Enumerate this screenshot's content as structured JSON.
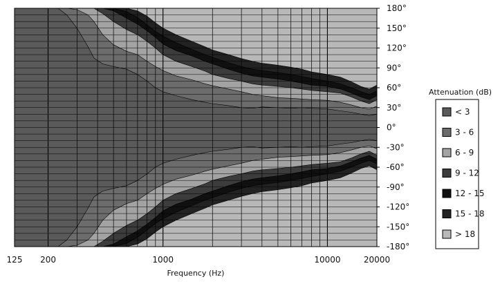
{
  "chart_data": {
    "type": "heatmap",
    "title": "",
    "xlabel": "Frequency (Hz)",
    "ylabel": "",
    "x_scale": "log",
    "xlim": [
      125,
      20000
    ],
    "ylim": [
      -180,
      180
    ],
    "grid": true,
    "x_ticks": [
      {
        "value": 125,
        "label": "125"
      },
      {
        "value": 200,
        "label": "200"
      },
      {
        "value": 1000,
        "label": "1000"
      },
      {
        "value": 10000,
        "label": "10000"
      },
      {
        "value": 20000,
        "label": "20000"
      }
    ],
    "y_ticks": [
      {
        "value": 180,
        "label": "180°"
      },
      {
        "value": 150,
        "label": "150°"
      },
      {
        "value": 120,
        "label": "120°"
      },
      {
        "value": 90,
        "label": "90°"
      },
      {
        "value": 60,
        "label": "60°"
      },
      {
        "value": 30,
        "label": "30°"
      },
      {
        "value": 0,
        "label": "0°"
      },
      {
        "value": -30,
        "label": "-30°"
      },
      {
        "value": -60,
        "label": "-60°"
      },
      {
        "value": -90,
        "label": "-90°"
      },
      {
        "value": -120,
        "label": "-120°"
      },
      {
        "value": -150,
        "label": "-150°"
      },
      {
        "value": -180,
        "label": "-180°"
      }
    ],
    "legend": {
      "title": "Attenuation (dB)",
      "position": "right",
      "items": [
        {
          "label": "< 3",
          "color": "#5a5a5a"
        },
        {
          "label": "3 - 6",
          "color": "#6c6c6c"
        },
        {
          "label": "6 - 9",
          "color": "#a3a3a3"
        },
        {
          "label": "9 - 12",
          "color": "#3c3c3c"
        },
        {
          "label": "12 - 15",
          "color": "#101010"
        },
        {
          "label": "15 - 18",
          "color": "#222222"
        },
        {
          "label": "> 18",
          "color": "#b8b8b8"
        }
      ]
    },
    "contours": {
      "level_3": [
        {
          "x": 125,
          "y": 180
        },
        {
          "x": 150,
          "y": 180
        },
        {
          "x": 180,
          "y": 180
        },
        {
          "x": 200,
          "y": 180
        },
        {
          "x": 230,
          "y": 180
        },
        {
          "x": 260,
          "y": 170
        },
        {
          "x": 300,
          "y": 150
        },
        {
          "x": 350,
          "y": 122
        },
        {
          "x": 380,
          "y": 105
        },
        {
          "x": 430,
          "y": 96
        },
        {
          "x": 500,
          "y": 92
        },
        {
          "x": 600,
          "y": 88
        },
        {
          "x": 700,
          "y": 80
        },
        {
          "x": 800,
          "y": 70
        },
        {
          "x": 900,
          "y": 60
        },
        {
          "x": 1000,
          "y": 54
        },
        {
          "x": 1200,
          "y": 48
        },
        {
          "x": 1500,
          "y": 42
        },
        {
          "x": 1800,
          "y": 38
        },
        {
          "x": 2000,
          "y": 36
        },
        {
          "x": 2500,
          "y": 33
        },
        {
          "x": 3000,
          "y": 30
        },
        {
          "x": 3500,
          "y": 29
        },
        {
          "x": 4000,
          "y": 31
        },
        {
          "x": 5000,
          "y": 30
        },
        {
          "x": 6000,
          "y": 29
        },
        {
          "x": 7000,
          "y": 30
        },
        {
          "x": 8000,
          "y": 29
        },
        {
          "x": 10000,
          "y": 28
        },
        {
          "x": 12000,
          "y": 25
        },
        {
          "x": 14000,
          "y": 23
        },
        {
          "x": 16000,
          "y": 20
        },
        {
          "x": 18000,
          "y": 18
        },
        {
          "x": 20000,
          "y": 20
        }
      ],
      "level_6": [
        {
          "x": 125,
          "y": 180
        },
        {
          "x": 150,
          "y": 180
        },
        {
          "x": 180,
          "y": 180
        },
        {
          "x": 200,
          "y": 180
        },
        {
          "x": 230,
          "y": 180
        },
        {
          "x": 260,
          "y": 180
        },
        {
          "x": 300,
          "y": 178
        },
        {
          "x": 350,
          "y": 170
        },
        {
          "x": 380,
          "y": 160
        },
        {
          "x": 430,
          "y": 140
        },
        {
          "x": 500,
          "y": 125
        },
        {
          "x": 600,
          "y": 115
        },
        {
          "x": 700,
          "y": 110
        },
        {
          "x": 800,
          "y": 100
        },
        {
          "x": 900,
          "y": 92
        },
        {
          "x": 1000,
          "y": 86
        },
        {
          "x": 1200,
          "y": 78
        },
        {
          "x": 1500,
          "y": 72
        },
        {
          "x": 1800,
          "y": 66
        },
        {
          "x": 2000,
          "y": 63
        },
        {
          "x": 2500,
          "y": 58
        },
        {
          "x": 3000,
          "y": 54
        },
        {
          "x": 3500,
          "y": 50
        },
        {
          "x": 4000,
          "y": 48
        },
        {
          "x": 5000,
          "y": 45
        },
        {
          "x": 6000,
          "y": 44
        },
        {
          "x": 7000,
          "y": 43
        },
        {
          "x": 8000,
          "y": 42
        },
        {
          "x": 10000,
          "y": 41
        },
        {
          "x": 12000,
          "y": 38
        },
        {
          "x": 14000,
          "y": 34
        },
        {
          "x": 16000,
          "y": 30
        },
        {
          "x": 18000,
          "y": 28
        },
        {
          "x": 20000,
          "y": 32
        }
      ],
      "level_9": [
        {
          "x": 125,
          "y": 180
        },
        {
          "x": 150,
          "y": 180
        },
        {
          "x": 180,
          "y": 180
        },
        {
          "x": 200,
          "y": 180
        },
        {
          "x": 230,
          "y": 180
        },
        {
          "x": 260,
          "y": 180
        },
        {
          "x": 300,
          "y": 180
        },
        {
          "x": 350,
          "y": 180
        },
        {
          "x": 380,
          "y": 180
        },
        {
          "x": 430,
          "y": 172
        },
        {
          "x": 500,
          "y": 160
        },
        {
          "x": 600,
          "y": 148
        },
        {
          "x": 700,
          "y": 140
        },
        {
          "x": 800,
          "y": 130
        },
        {
          "x": 900,
          "y": 120
        },
        {
          "x": 1000,
          "y": 110
        },
        {
          "x": 1200,
          "y": 100
        },
        {
          "x": 1500,
          "y": 92
        },
        {
          "x": 1800,
          "y": 85
        },
        {
          "x": 2000,
          "y": 80
        },
        {
          "x": 2500,
          "y": 74
        },
        {
          "x": 3000,
          "y": 70
        },
        {
          "x": 3500,
          "y": 66
        },
        {
          "x": 4000,
          "y": 64
        },
        {
          "x": 5000,
          "y": 62
        },
        {
          "x": 6000,
          "y": 60
        },
        {
          "x": 7000,
          "y": 58
        },
        {
          "x": 8000,
          "y": 56
        },
        {
          "x": 10000,
          "y": 54
        },
        {
          "x": 12000,
          "y": 52
        },
        {
          "x": 14000,
          "y": 46
        },
        {
          "x": 16000,
          "y": 40
        },
        {
          "x": 18000,
          "y": 36
        },
        {
          "x": 20000,
          "y": 42
        }
      ],
      "level_12": [
        {
          "x": 125,
          "y": 180
        },
        {
          "x": 150,
          "y": 180
        },
        {
          "x": 180,
          "y": 180
        },
        {
          "x": 200,
          "y": 180
        },
        {
          "x": 230,
          "y": 180
        },
        {
          "x": 260,
          "y": 180
        },
        {
          "x": 300,
          "y": 180
        },
        {
          "x": 350,
          "y": 180
        },
        {
          "x": 380,
          "y": 180
        },
        {
          "x": 430,
          "y": 180
        },
        {
          "x": 500,
          "y": 176
        },
        {
          "x": 600,
          "y": 165
        },
        {
          "x": 700,
          "y": 156
        },
        {
          "x": 800,
          "y": 146
        },
        {
          "x": 900,
          "y": 136
        },
        {
          "x": 1000,
          "y": 126
        },
        {
          "x": 1200,
          "y": 116
        },
        {
          "x": 1500,
          "y": 108
        },
        {
          "x": 1800,
          "y": 100
        },
        {
          "x": 2000,
          "y": 96
        },
        {
          "x": 2500,
          "y": 88
        },
        {
          "x": 3000,
          "y": 82
        },
        {
          "x": 3500,
          "y": 78
        },
        {
          "x": 4000,
          "y": 76
        },
        {
          "x": 5000,
          "y": 73
        },
        {
          "x": 6000,
          "y": 70
        },
        {
          "x": 7000,
          "y": 67
        },
        {
          "x": 8000,
          "y": 64
        },
        {
          "x": 10000,
          "y": 62
        },
        {
          "x": 12000,
          "y": 58
        },
        {
          "x": 14000,
          "y": 52
        },
        {
          "x": 16000,
          "y": 46
        },
        {
          "x": 18000,
          "y": 42
        },
        {
          "x": 20000,
          "y": 48
        }
      ],
      "level_15": [
        {
          "x": 125,
          "y": 180
        },
        {
          "x": 150,
          "y": 180
        },
        {
          "x": 180,
          "y": 180
        },
        {
          "x": 200,
          "y": 180
        },
        {
          "x": 230,
          "y": 180
        },
        {
          "x": 260,
          "y": 180
        },
        {
          "x": 300,
          "y": 180
        },
        {
          "x": 350,
          "y": 180
        },
        {
          "x": 380,
          "y": 180
        },
        {
          "x": 430,
          "y": 180
        },
        {
          "x": 500,
          "y": 180
        },
        {
          "x": 600,
          "y": 175
        },
        {
          "x": 700,
          "y": 166
        },
        {
          "x": 800,
          "y": 155
        },
        {
          "x": 900,
          "y": 145
        },
        {
          "x": 1000,
          "y": 138
        },
        {
          "x": 1200,
          "y": 128
        },
        {
          "x": 1500,
          "y": 118
        },
        {
          "x": 1800,
          "y": 110
        },
        {
          "x": 2000,
          "y": 106
        },
        {
          "x": 2500,
          "y": 98
        },
        {
          "x": 3000,
          "y": 92
        },
        {
          "x": 3500,
          "y": 88
        },
        {
          "x": 4000,
          "y": 86
        },
        {
          "x": 5000,
          "y": 83
        },
        {
          "x": 6000,
          "y": 80
        },
        {
          "x": 7000,
          "y": 77
        },
        {
          "x": 8000,
          "y": 74
        },
        {
          "x": 10000,
          "y": 70
        },
        {
          "x": 12000,
          "y": 66
        },
        {
          "x": 14000,
          "y": 60
        },
        {
          "x": 16000,
          "y": 54
        },
        {
          "x": 18000,
          "y": 50
        },
        {
          "x": 20000,
          "y": 55
        }
      ],
      "level_18": [
        {
          "x": 125,
          "y": 180
        },
        {
          "x": 150,
          "y": 180
        },
        {
          "x": 180,
          "y": 180
        },
        {
          "x": 200,
          "y": 180
        },
        {
          "x": 230,
          "y": 180
        },
        {
          "x": 260,
          "y": 180
        },
        {
          "x": 300,
          "y": 180
        },
        {
          "x": 350,
          "y": 180
        },
        {
          "x": 380,
          "y": 180
        },
        {
          "x": 430,
          "y": 180
        },
        {
          "x": 500,
          "y": 180
        },
        {
          "x": 600,
          "y": 180
        },
        {
          "x": 700,
          "y": 176
        },
        {
          "x": 800,
          "y": 168
        },
        {
          "x": 900,
          "y": 158
        },
        {
          "x": 1000,
          "y": 150
        },
        {
          "x": 1200,
          "y": 140
        },
        {
          "x": 1500,
          "y": 130
        },
        {
          "x": 1800,
          "y": 122
        },
        {
          "x": 2000,
          "y": 117
        },
        {
          "x": 2500,
          "y": 110
        },
        {
          "x": 3000,
          "y": 104
        },
        {
          "x": 3500,
          "y": 100
        },
        {
          "x": 4000,
          "y": 97
        },
        {
          "x": 5000,
          "y": 94
        },
        {
          "x": 6000,
          "y": 91
        },
        {
          "x": 7000,
          "y": 88
        },
        {
          "x": 8000,
          "y": 84
        },
        {
          "x": 10000,
          "y": 80
        },
        {
          "x": 12000,
          "y": 76
        },
        {
          "x": 14000,
          "y": 69
        },
        {
          "x": 16000,
          "y": 62
        },
        {
          "x": 18000,
          "y": 58
        },
        {
          "x": 20000,
          "y": 64
        }
      ]
    }
  }
}
